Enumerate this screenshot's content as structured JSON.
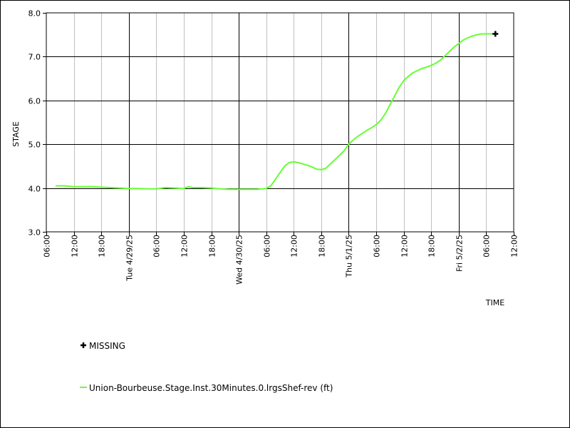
{
  "chart_data": {
    "type": "line",
    "xlabel": "TIME",
    "ylabel": "STAGE",
    "x_start": "4/28/25 06:00",
    "x_end": "5/2/25 12:00",
    "ylim": [
      3.0,
      8.0
    ],
    "y_ticks": [
      "3.0",
      "4.0",
      "5.0",
      "6.0",
      "7.0",
      "8.0"
    ],
    "x_hour_ticks": [
      "06:00",
      "12:00",
      "18:00",
      "06:00",
      "12:00",
      "18:00",
      "06:00",
      "12:00",
      "18:00",
      "06:00",
      "12:00",
      "18:00",
      "06:00",
      "12:00"
    ],
    "x_day_labels": [
      "Tue 4/29/25",
      "Wed 4/30/25",
      "Thu 5/1/25",
      "Fri 5/2/25"
    ],
    "grid": true,
    "line_color": "#66ff33",
    "missing_marker_color": "#000000",
    "legend": {
      "missing_label": "MISSING",
      "series_label": "Union-Bourbeuse.Stage.Inst.30Minutes.0.lrgsShef-rev (ft)"
    },
    "series": [
      {
        "name": "Union-Bourbeuse.Stage.Inst.30Minutes.0.lrgsShef-rev (ft)",
        "points": [
          [
            "4/28/25 08:00",
            4.05
          ],
          [
            "4/28/25 10:00",
            4.05
          ],
          [
            "4/28/25 12:00",
            4.03
          ],
          [
            "4/28/25 14:00",
            4.03
          ],
          [
            "4/28/25 16:00",
            4.03
          ],
          [
            "4/28/25 18:00",
            4.02
          ],
          [
            "4/28/25 20:00",
            4.01
          ],
          [
            "4/28/25 22:00",
            4.0
          ],
          [
            "4/29/25 00:00",
            3.99
          ],
          [
            "4/29/25 02:00",
            3.99
          ],
          [
            "4/29/25 04:00",
            3.98
          ],
          [
            "4/29/25 06:00",
            3.98
          ],
          [
            "4/29/25 08:00",
            4.01
          ],
          [
            "4/29/25 10:00",
            4.0
          ],
          [
            "4/29/25 12:00",
            3.99
          ],
          [
            "4/29/25 13:00",
            4.03
          ],
          [
            "4/29/25 14:00",
            4.01
          ],
          [
            "4/29/25 16:00",
            4.01
          ],
          [
            "4/29/25 18:00",
            4.0
          ],
          [
            "4/29/25 20:00",
            3.98
          ],
          [
            "4/29/25 22:00",
            3.97
          ],
          [
            "4/30/25 00:00",
            3.97
          ],
          [
            "4/30/25 02:00",
            3.97
          ],
          [
            "4/30/25 04:00",
            3.97
          ],
          [
            "4/30/25 06:00",
            3.99
          ],
          [
            "4/30/25 07:00",
            4.05
          ],
          [
            "4/30/25 08:00",
            4.2
          ],
          [
            "4/30/25 09:00",
            4.35
          ],
          [
            "4/30/25 10:00",
            4.5
          ],
          [
            "4/30/25 11:00",
            4.58
          ],
          [
            "4/30/25 12:00",
            4.6
          ],
          [
            "4/30/25 13:00",
            4.58
          ],
          [
            "4/30/25 14:00",
            4.55
          ],
          [
            "4/30/25 15:00",
            4.52
          ],
          [
            "4/30/25 16:00",
            4.48
          ],
          [
            "4/30/25 17:00",
            4.43
          ],
          [
            "4/30/25 18:00",
            4.42
          ],
          [
            "4/30/25 19:00",
            4.45
          ],
          [
            "4/30/25 20:00",
            4.55
          ],
          [
            "4/30/25 21:00",
            4.65
          ],
          [
            "4/30/25 22:00",
            4.75
          ],
          [
            "4/30/25 23:00",
            4.85
          ],
          [
            "5/1/25 00:00",
            5.0
          ],
          [
            "5/1/25 01:00",
            5.1
          ],
          [
            "5/1/25 02:00",
            5.18
          ],
          [
            "5/1/25 03:00",
            5.25
          ],
          [
            "5/1/25 04:00",
            5.32
          ],
          [
            "5/1/25 05:00",
            5.38
          ],
          [
            "5/1/25 06:00",
            5.45
          ],
          [
            "5/1/25 07:00",
            5.55
          ],
          [
            "5/1/25 08:00",
            5.7
          ],
          [
            "5/1/25 09:00",
            5.9
          ],
          [
            "5/1/25 10:00",
            6.1
          ],
          [
            "5/1/25 11:00",
            6.3
          ],
          [
            "5/1/25 12:00",
            6.45
          ],
          [
            "5/1/25 13:00",
            6.55
          ],
          [
            "5/1/25 14:00",
            6.63
          ],
          [
            "5/1/25 15:00",
            6.68
          ],
          [
            "5/1/25 16:00",
            6.73
          ],
          [
            "5/1/25 17:00",
            6.76
          ],
          [
            "5/1/25 18:00",
            6.8
          ],
          [
            "5/1/25 19:00",
            6.85
          ],
          [
            "5/1/25 20:00",
            6.92
          ],
          [
            "5/1/25 21:00",
            7.02
          ],
          [
            "5/1/25 22:00",
            7.12
          ],
          [
            "5/1/25 23:00",
            7.22
          ],
          [
            "5/2/25 00:00",
            7.3
          ],
          [
            "5/2/25 01:00",
            7.38
          ],
          [
            "5/2/25 02:00",
            7.43
          ],
          [
            "5/2/25 03:00",
            7.47
          ],
          [
            "5/2/25 04:00",
            7.5
          ],
          [
            "5/2/25 05:00",
            7.52
          ],
          [
            "5/2/25 06:00",
            7.52
          ],
          [
            "5/2/25 07:00",
            7.52
          ],
          [
            "5/2/25 08:00",
            7.52
          ]
        ]
      }
    ],
    "missing_points": [
      [
        "5/2/25 08:00",
        7.52
      ]
    ]
  }
}
